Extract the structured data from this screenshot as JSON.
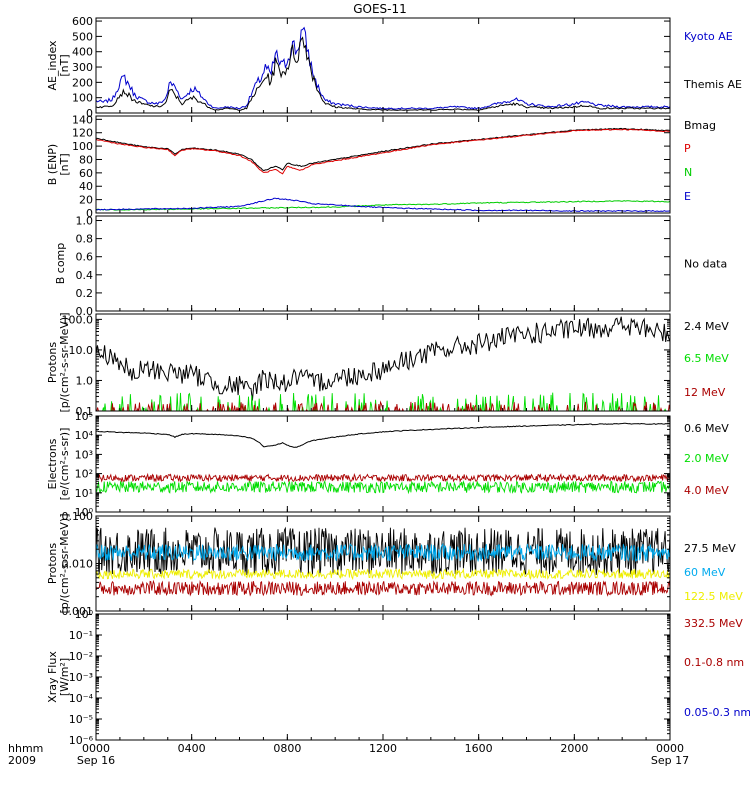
{
  "title": "GOES-11",
  "chart_data": {
    "type": "line",
    "title": "GOES-11",
    "x_axis": {
      "label_line1": "hhmm",
      "label_line2": "2009",
      "ticks": [
        "0000",
        "0400",
        "0800",
        "1200",
        "1600",
        "2000",
        "0000"
      ],
      "tick_hours": [
        0,
        4,
        8,
        12,
        16,
        20,
        24
      ],
      "date_start": "Sep 16",
      "date_end": "Sep 17",
      "range_hours": [
        0,
        24
      ]
    },
    "panels": [
      {
        "id": "ae",
        "ylabel": [
          "AE_index",
          "[nT]"
        ],
        "scale": "linear",
        "ylim": [
          0,
          620
        ],
        "yticks": [
          0,
          100,
          200,
          300,
          400,
          500,
          600
        ],
        "ytick_labels": [
          "0",
          "100",
          "200",
          "300",
          "400",
          "500",
          "600"
        ],
        "no_data": "",
        "series": [
          {
            "name": "Kyoto AE",
            "color": "#0000cc",
            "legend": "Kyoto AE",
            "x": [
              0,
              0.3,
              0.7,
              1.0,
              1.2,
              1.4,
              1.6,
              1.9,
              2.2,
              2.6,
              2.9,
              3.1,
              3.3,
              3.6,
              3.9,
              4.1,
              4.4,
              4.7,
              5.0,
              5.5,
              6.0,
              6.3,
              6.6,
              6.9,
              7.1,
              7.3,
              7.5,
              7.8,
              8.0,
              8.2,
              8.4,
              8.6,
              8.8,
              9.0,
              9.2,
              9.4,
              9.6,
              10.0,
              11.0,
              12.0,
              13.0,
              14.0,
              15.0,
              16.0,
              17.0,
              17.5,
              18.0,
              19.0,
              20.0,
              20.5,
              21.0,
              22.0,
              23.0,
              24.0
            ],
            "y": [
              80,
              70,
              90,
              200,
              230,
              180,
              120,
              90,
              70,
              60,
              90,
              200,
              170,
              90,
              140,
              160,
              110,
              60,
              30,
              40,
              30,
              50,
              160,
              230,
              300,
              240,
              380,
              300,
              350,
              450,
              400,
              540,
              450,
              300,
              200,
              130,
              80,
              60,
              40,
              30,
              30,
              30,
              40,
              30,
              70,
              90,
              60,
              40,
              60,
              70,
              50,
              40,
              40,
              40
            ]
          },
          {
            "name": "Themis AE",
            "color": "#000000",
            "legend": "Themis AE",
            "x": [
              0,
              0.3,
              0.7,
              1.0,
              1.2,
              1.4,
              1.6,
              1.9,
              2.2,
              2.6,
              2.9,
              3.1,
              3.3,
              3.6,
              3.9,
              4.1,
              4.4,
              4.7,
              5.0,
              5.5,
              6.0,
              6.3,
              6.6,
              6.9,
              7.1,
              7.3,
              7.5,
              7.8,
              8.0,
              8.2,
              8.4,
              8.6,
              8.8,
              9.0,
              9.2,
              9.4,
              9.6,
              10.0,
              11.0,
              12.0,
              13.0,
              14.0,
              15.0,
              16.0,
              17.0,
              17.5,
              18.0,
              19.0,
              20.0,
              20.5,
              21.0,
              22.0,
              23.0,
              24.0
            ],
            "y": [
              40,
              40,
              50,
              120,
              140,
              110,
              80,
              60,
              50,
              40,
              60,
              150,
              120,
              60,
              90,
              100,
              70,
              40,
              20,
              30,
              20,
              30,
              120,
              180,
              250,
              200,
              320,
              260,
              300,
              400,
              360,
              480,
              420,
              280,
              180,
              110,
              60,
              40,
              25,
              20,
              20,
              20,
              25,
              20,
              50,
              60,
              40,
              30,
              40,
              50,
              30,
              30,
              30,
              30
            ]
          }
        ]
      },
      {
        "id": "bfield",
        "ylabel": [
          "B (ENP)",
          "[nT]"
        ],
        "scale": "linear",
        "ylim": [
          0,
          145
        ],
        "yticks": [
          0,
          20,
          40,
          60,
          80,
          100,
          120,
          140
        ],
        "ytick_labels": [
          "0",
          "20",
          "40",
          "60",
          "80",
          "100",
          "120",
          "140"
        ],
        "no_data": "",
        "series": [
          {
            "name": "Bmag",
            "color": "#000000",
            "legend": "Bmag",
            "x": [
              0,
              1,
              2,
              3,
              3.3,
              3.6,
              4,
              5,
              6,
              6.5,
              7,
              7.5,
              7.8,
              8,
              8.3,
              8.6,
              9,
              10,
              12,
              14,
              16,
              18,
              20,
              22,
              24
            ],
            "y": [
              112,
              105,
              99,
              96,
              88,
              95,
              97,
              94,
              88,
              80,
              63,
              70,
              65,
              75,
              72,
              70,
              74,
              80,
              92,
              103,
              110,
              117,
              124,
              126,
              123
            ]
          },
          {
            "name": "P",
            "color": "#dd0000",
            "legend": "P",
            "x": [
              0,
              1,
              2,
              3,
              3.3,
              3.6,
              4,
              5,
              6,
              6.5,
              7,
              7.5,
              7.8,
              8,
              8.3,
              8.6,
              9,
              10,
              12,
              14,
              16,
              18,
              20,
              22,
              24
            ],
            "y": [
              110,
              103,
              98,
              95,
              86,
              94,
              96,
              93,
              86,
              77,
              60,
              65,
              58,
              70,
              66,
              64,
              72,
              78,
              90,
              102,
              109,
              116,
              123,
              125,
              122
            ]
          },
          {
            "name": "N",
            "color": "#00cc00",
            "legend": "N",
            "x": [
              0,
              2,
              4,
              6,
              8,
              10,
              12,
              14,
              16,
              18,
              20,
              22,
              24
            ],
            "y": [
              5,
              5,
              6,
              7,
              8,
              9,
              12,
              13,
              15,
              16,
              17,
              18,
              17
            ]
          },
          {
            "name": "E",
            "color": "#0000cc",
            "legend": "E",
            "x": [
              0,
              2,
              4,
              6,
              7,
              7.5,
              8,
              8.5,
              9,
              10,
              12,
              14,
              16,
              18,
              20,
              22,
              24
            ],
            "y": [
              5,
              6,
              7,
              10,
              18,
              22,
              20,
              18,
              14,
              12,
              8,
              6,
              4,
              4,
              3,
              3,
              3
            ]
          }
        ]
      },
      {
        "id": "bcomp",
        "ylabel": [
          "B comp"
        ],
        "scale": "linear",
        "ylim": [
          0,
          1.05
        ],
        "yticks": [
          0,
          0.2,
          0.4,
          0.6,
          0.8,
          1.0
        ],
        "ytick_labels": [
          "0.0",
          "0.2",
          "0.4",
          "0.6",
          "0.8",
          "1.0"
        ],
        "no_data": "No data",
        "series": []
      },
      {
        "id": "protons_low",
        "ylabel": [
          "Protons",
          "[p/(cm²-s-sr-MeV)]"
        ],
        "scale": "log",
        "ylim": [
          0.1,
          150
        ],
        "yticks": [
          0.1,
          1.0,
          10.0,
          100.0
        ],
        "ytick_labels": [
          "0.1",
          "1.0",
          "10.0",
          "100.0"
        ],
        "no_data": "",
        "series": [
          {
            "name": "2.4 MeV",
            "color": "#000000",
            "legend": "2.4 MeV",
            "x": [
              0,
              0.5,
              1,
              1.5,
              2,
              3,
              4,
              5,
              6,
              6.5,
              7,
              8,
              8.5,
              9,
              10,
              11,
              12,
              13,
              14,
              15,
              16,
              17,
              18,
              19,
              20,
              21,
              22,
              23,
              24
            ],
            "y": [
              10,
              9,
              5,
              1.5,
              3,
              2.5,
              2,
              1,
              0.8,
              0.5,
              1.5,
              1,
              1.8,
              1,
              1.5,
              2,
              3,
              6,
              10,
              15,
              20,
              30,
              40,
              50,
              60,
              70,
              80,
              60,
              40
            ]
          },
          {
            "name": "6.5 MeV",
            "color": "#00dd00",
            "legend": "6.5 MeV",
            "x": [
              0,
              24
            ],
            "y": [
              0.2,
              0.2
            ]
          },
          {
            "name": "12 MeV",
            "color": "#aa0000",
            "legend": "12 MeV",
            "x": [
              0,
              24
            ],
            "y": [
              0.12,
              0.12
            ]
          }
        ]
      },
      {
        "id": "electrons",
        "ylabel": [
          "Electrons",
          "[e/(cm²-s-sr)]"
        ],
        "scale": "log",
        "ylim": [
          1,
          100000
        ],
        "yticks": [
          1,
          10,
          100,
          1000,
          10000,
          100000
        ],
        "ytick_labels": [
          "10⁰",
          "10¹",
          "10²",
          "10³",
          "10⁴",
          "10⁵"
        ],
        "no_data": "",
        "series": [
          {
            "name": "0.6 MeV",
            "color": "#000000",
            "legend": "0.6 MeV",
            "x": [
              0,
              1,
              2,
              3,
              3.3,
              3.6,
              4,
              5,
              6,
              6.5,
              7,
              7.5,
              7.8,
              8,
              8.3,
              8.6,
              9,
              10,
              12,
              14,
              16,
              18,
              20,
              22,
              24
            ],
            "y": [
              16000,
              14000,
              13000,
              11000,
              8000,
              11000,
              12000,
              11000,
              9000,
              7000,
              2500,
              3000,
              4000,
              3000,
              2200,
              3000,
              5000,
              8000,
              15000,
              20000,
              25000,
              30000,
              35000,
              40000,
              38000
            ]
          },
          {
            "name": "2.0 MeV",
            "color": "#00dd00",
            "legend": "2.0 MeV",
            "x": [
              0,
              24
            ],
            "y": [
              20,
              20
            ]
          },
          {
            "name": "4.0 MeV",
            "color": "#aa0000",
            "legend": "4.0 MeV",
            "x": [
              0,
              24
            ],
            "y": [
              60,
              60
            ]
          }
        ]
      },
      {
        "id": "protons_high",
        "ylabel": [
          "Protons",
          "[p/(cm²-s-sr-MeV)]"
        ],
        "scale": "log",
        "ylim": [
          0.001,
          0.1
        ],
        "yticks": [
          0.001,
          0.01,
          0.1
        ],
        "ytick_labels": [
          "0.001",
          "0.010",
          "0.100"
        ],
        "no_data": "",
        "series": [
          {
            "name": "27.5 MeV",
            "color": "#000000",
            "legend": "27.5 MeV",
            "x": [
              0,
              24
            ],
            "y": [
              0.02,
              0.02
            ]
          },
          {
            "name": "60 MeV",
            "color": "#00aaee",
            "legend": "60 MeV",
            "x": [
              0,
              24
            ],
            "y": [
              0.018,
              0.018
            ]
          },
          {
            "name": "122.5 MeV",
            "color": "#eeee00",
            "legend": "122.5 MeV",
            "x": [
              0,
              24
            ],
            "y": [
              0.006,
              0.006
            ]
          },
          {
            "name": "332.5 MeV",
            "color": "#aa0000",
            "legend": "332.5 MeV",
            "x": [
              0,
              24
            ],
            "y": [
              0.003,
              0.003
            ]
          }
        ]
      },
      {
        "id": "xray",
        "ylabel": [
          "Xray Flux",
          "[W/m²]"
        ],
        "scale": "log",
        "ylim": [
          1e-06,
          1
        ],
        "yticks": [
          1e-06,
          1e-05,
          0.0001,
          0.001,
          0.01,
          0.1,
          1
        ],
        "ytick_labels": [
          "10⁻⁶",
          "10⁻⁵",
          "10⁻⁴",
          "10⁻³",
          "10⁻²",
          "10⁻¹",
          "10⁰"
        ],
        "no_data": "",
        "series": [],
        "legend_only": [
          {
            "name": "0.1-0.8 nm",
            "color": "#aa0000"
          },
          {
            "name": "0.05-0.3 nm",
            "color": "#0000cc"
          }
        ]
      }
    ],
    "noisy_series": {
      "protons_low": {
        "6.5 MeV": {
          "floor": 0.1,
          "spike_max": 0.4
        },
        "12 MeV": {
          "floor": 0.1,
          "spike_max": 0.2
        }
      },
      "electrons": {
        "2.0 MeV": {
          "center": 20,
          "spread_decades": 0.3
        },
        "4.0 MeV": {
          "center": 60,
          "spread_decades": 0.18
        }
      },
      "protons_high": {
        "27.5 MeV": {
          "center": 0.018,
          "spread_decades": 0.5
        },
        "60 MeV": {
          "center": 0.017,
          "spread_decades": 0.18
        },
        "122.5 MeV": {
          "center": 0.006,
          "spread_decades": 0.1
        },
        "332.5 MeV": {
          "center": 0.003,
          "spread_decades": 0.15
        }
      }
    }
  }
}
